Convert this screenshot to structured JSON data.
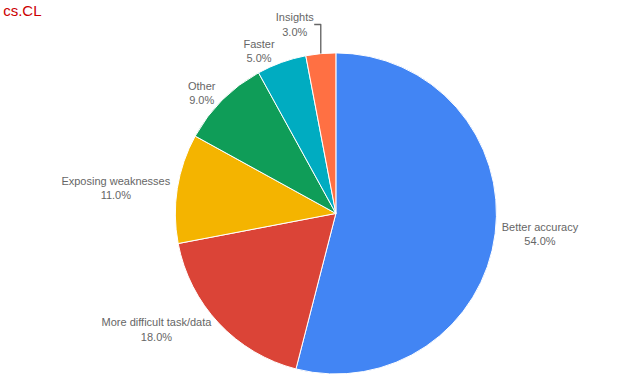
{
  "chart_data": {
    "type": "pie",
    "title": "cs.CL",
    "categories": [
      "Better accuracy",
      "More difficult task/data",
      "Exposing weaknesses",
      "Other",
      "Faster",
      "Insights"
    ],
    "values": [
      54,
      18,
      11,
      9,
      5,
      3
    ],
    "value_labels": [
      "54.0%",
      "18.0%",
      "11.0%",
      "9.0%",
      "5.0%",
      "3.0%"
    ],
    "colors": [
      "#4285f4",
      "#db4437",
      "#f4b400",
      "#0f9d58",
      "#00acc1",
      "#ff7043"
    ],
    "data_labels": true
  }
}
